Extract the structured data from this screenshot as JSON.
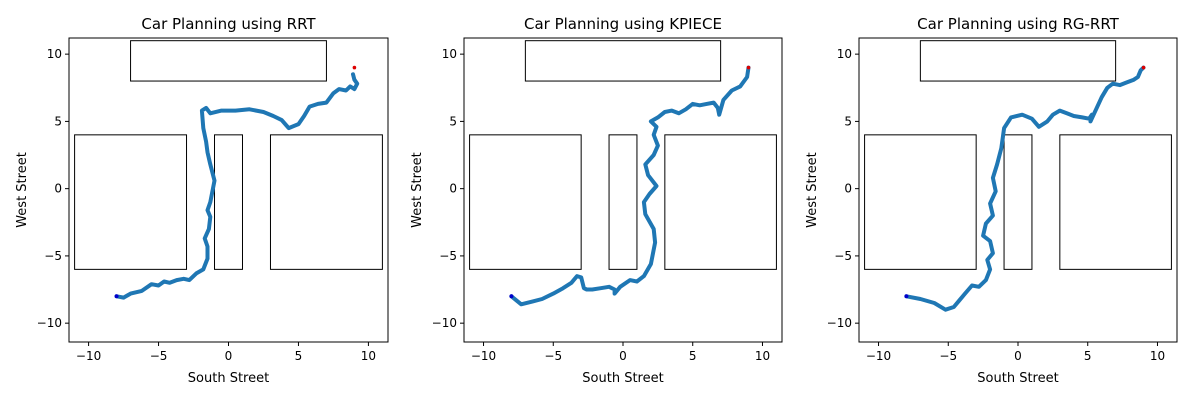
{
  "chart_data": [
    {
      "type": "line",
      "title": "Car Planning using RRT",
      "xlabel": "South Street",
      "ylabel": "West Street",
      "xlim": [
        -11.4,
        11.4
      ],
      "ylim": [
        -11.4,
        11.2
      ],
      "xticks": [
        -10,
        -5,
        0,
        5,
        10
      ],
      "yticks": [
        -10,
        -5,
        0,
        5,
        10
      ],
      "grid": false,
      "obstacles": [
        [
          -7,
          8,
          14,
          3
        ],
        [
          -11,
          -6,
          8,
          10
        ],
        [
          -1,
          -6,
          2,
          10
        ],
        [
          3,
          -6,
          8,
          10
        ]
      ],
      "start": [
        -8,
        -8
      ],
      "goal": [
        9,
        9
      ],
      "path": {
        "x": [
          -8,
          -7.5,
          -7,
          -6.2,
          -5.5,
          -5,
          -4.6,
          -4.2,
          -3.7,
          -3.2,
          -2.8,
          -2.3,
          -1.8,
          -1.5,
          -1.5,
          -1.7,
          -1.4,
          -1.3,
          -1.5,
          -1.3,
          -1.0,
          -1.3,
          -1.5,
          -1.6,
          -1.8,
          -1.9,
          -1.6,
          -1.3,
          -0.5,
          0.5,
          1.5,
          2.5,
          3.2,
          3.8,
          4.3,
          5.0,
          5.4,
          5.8,
          6.4,
          7.0,
          7.5,
          7.9,
          8.4,
          8.7,
          9.0,
          9.2,
          9.0,
          8.9
        ],
        "y": [
          -8,
          -8.1,
          -7.8,
          -7.6,
          -7.1,
          -7.2,
          -6.9,
          -7.0,
          -6.8,
          -6.7,
          -6.8,
          -6.3,
          -6.0,
          -5.2,
          -4.3,
          -3.7,
          -3.0,
          -2.1,
          -1.6,
          -1.0,
          0.6,
          1.8,
          2.7,
          3.5,
          4.5,
          5.8,
          6.0,
          5.6,
          5.8,
          5.8,
          5.9,
          5.7,
          5.4,
          5.1,
          4.5,
          4.8,
          5.4,
          6.1,
          6.3,
          6.4,
          7.1,
          7.4,
          7.3,
          7.6,
          7.4,
          7.8,
          8.1,
          8.5
        ]
      }
    },
    {
      "type": "line",
      "title": "Car Planning using KPIECE",
      "xlabel": "South Street",
      "ylabel": "West Street",
      "xlim": [
        -11.4,
        11.4
      ],
      "ylim": [
        -11.4,
        11.2
      ],
      "xticks": [
        -10,
        -5,
        0,
        5,
        10
      ],
      "yticks": [
        -10,
        -5,
        0,
        5,
        10
      ],
      "grid": false,
      "obstacles": [
        [
          -7,
          8,
          14,
          3
        ],
        [
          -11,
          -6,
          8,
          10
        ],
        [
          -1,
          -6,
          2,
          10
        ],
        [
          3,
          -6,
          8,
          10
        ]
      ],
      "start": [
        -8,
        -8
      ],
      "goal": [
        9,
        9
      ],
      "path": {
        "x": [
          -8,
          -7.3,
          -6.5,
          -5.8,
          -5.0,
          -4.3,
          -3.7,
          -3.3,
          -3.0,
          -2.8,
          -2.6,
          -2.2,
          -1.6,
          -1.0,
          -0.6,
          -0.6,
          -0.2,
          0.5,
          1.0,
          1.5,
          2.0,
          2.3,
          2.2,
          1.6,
          1.5,
          1.9,
          2.4,
          1.8,
          1.6,
          2.2,
          2.5,
          2.2,
          2.4,
          2.0,
          2.5,
          3.0,
          3.5,
          4.0,
          4.5,
          5.0,
          5.5,
          6.0,
          6.5,
          6.8,
          6.9,
          7.2,
          7.8,
          8.4,
          8.9,
          9.0
        ],
        "y": [
          -8,
          -8.6,
          -8.4,
          -8.2,
          -7.8,
          -7.4,
          -7.0,
          -6.5,
          -6.6,
          -7.4,
          -7.5,
          -7.5,
          -7.4,
          -7.3,
          -7.5,
          -7.8,
          -7.3,
          -6.8,
          -6.9,
          -6.5,
          -5.6,
          -4.0,
          -3.0,
          -1.9,
          -1.0,
          -0.4,
          0.2,
          1.0,
          1.8,
          2.5,
          3.2,
          4.0,
          4.6,
          5.0,
          5.3,
          5.7,
          5.8,
          5.6,
          5.9,
          6.3,
          6.2,
          6.3,
          6.4,
          6.0,
          5.5,
          6.6,
          7.3,
          7.6,
          8.3,
          9.0
        ]
      }
    },
    {
      "type": "line",
      "title": "Car Planning using RG-RRT",
      "xlabel": "South Street",
      "ylabel": "West Street",
      "xlim": [
        -11.4,
        11.4
      ],
      "ylim": [
        -11.4,
        11.2
      ],
      "xticks": [
        -10,
        -5,
        0,
        5,
        10
      ],
      "yticks": [
        -10,
        -5,
        0,
        5,
        10
      ],
      "grid": false,
      "obstacles": [
        [
          -7,
          8,
          14,
          3
        ],
        [
          -11,
          -6,
          8,
          10
        ],
        [
          -1,
          -6,
          2,
          10
        ],
        [
          3,
          -6,
          8,
          10
        ]
      ],
      "start": [
        -8,
        -8
      ],
      "goal": [
        9,
        9
      ],
      "path": {
        "x": [
          -8,
          -7.0,
          -6.0,
          -5.2,
          -4.6,
          -4.2,
          -3.8,
          -3.3,
          -2.8,
          -2.3,
          -2.0,
          -2.2,
          -1.8,
          -2.0,
          -2.5,
          -2.3,
          -1.8,
          -2.0,
          -1.6,
          -1.8,
          -1.5,
          -1.2,
          -1.0,
          -0.5,
          0.3,
          1.0,
          1.5,
          2.1,
          2.5,
          3.0,
          3.5,
          4.0,
          4.6,
          5.1,
          5.3,
          5.2,
          5.6,
          6.0,
          6.4,
          6.8,
          7.3,
          7.8,
          8.3,
          8.6,
          8.8,
          9.0
        ],
        "y": [
          -8,
          -8.2,
          -8.5,
          -9.0,
          -8.8,
          -8.3,
          -7.8,
          -7.2,
          -7.3,
          -6.8,
          -6.0,
          -5.3,
          -4.8,
          -3.9,
          -3.5,
          -2.6,
          -2.0,
          -1.1,
          -0.2,
          0.8,
          1.8,
          3.0,
          4.5,
          5.3,
          5.5,
          5.2,
          4.6,
          5.0,
          5.5,
          5.8,
          5.6,
          5.4,
          5.3,
          5.2,
          5.5,
          5.0,
          5.9,
          6.8,
          7.5,
          7.8,
          7.7,
          7.9,
          8.1,
          8.3,
          8.8,
          9.0
        ]
      }
    }
  ]
}
